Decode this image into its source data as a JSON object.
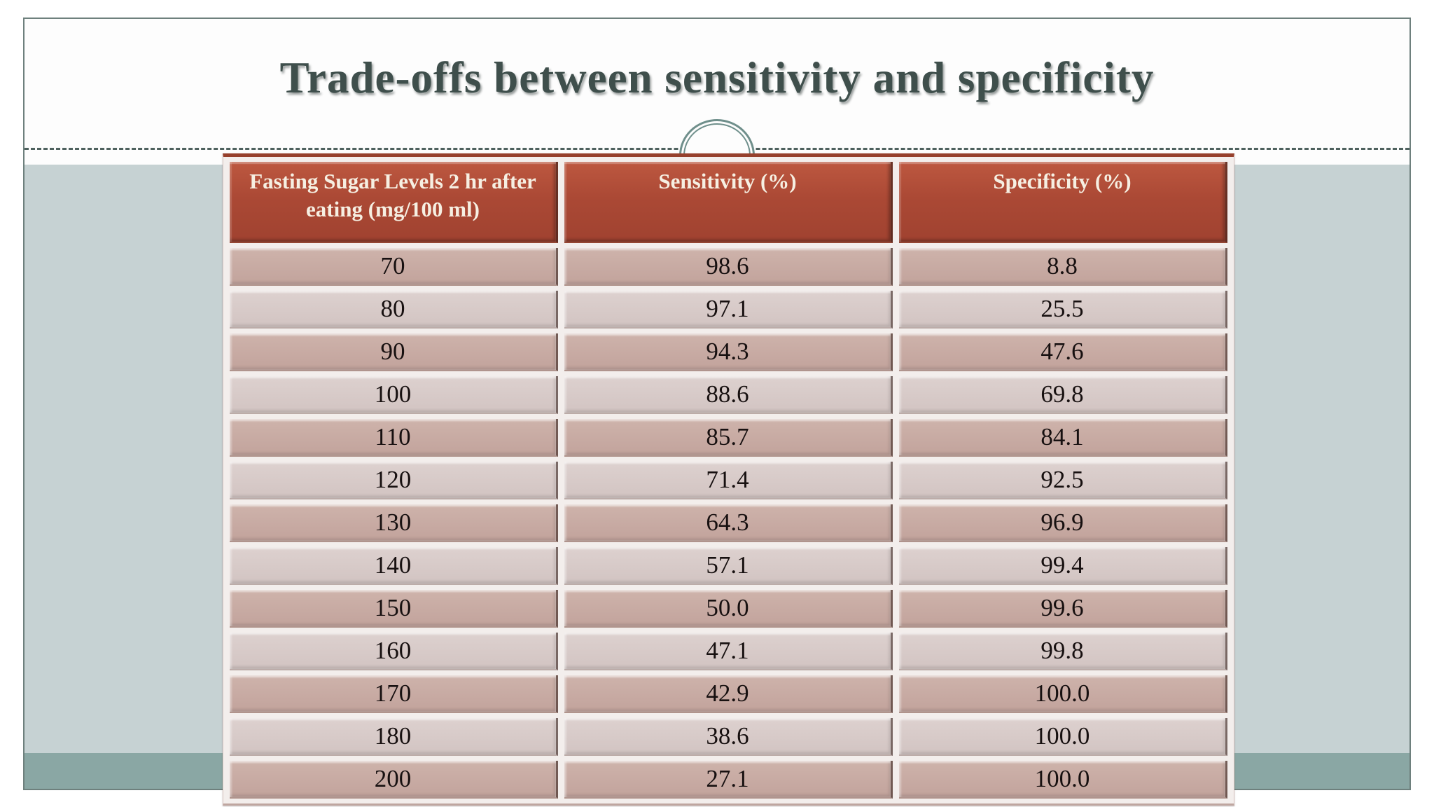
{
  "slide": {
    "title": "Trade-offs between sensitivity and specificity"
  },
  "table": {
    "headers": [
      "Fasting Sugar Levels 2 hr after eating (mg/100 ml)",
      "Sensitivity (%)",
      "Specificity (%)"
    ],
    "rows": [
      {
        "level": "70",
        "sensitivity": "98.6",
        "specificity": "8.8"
      },
      {
        "level": "80",
        "sensitivity": "97.1",
        "specificity": "25.5"
      },
      {
        "level": "90",
        "sensitivity": "94.3",
        "specificity": "47.6"
      },
      {
        "level": "100",
        "sensitivity": "88.6",
        "specificity": "69.8"
      },
      {
        "level": "110",
        "sensitivity": "85.7",
        "specificity": "84.1"
      },
      {
        "level": "120",
        "sensitivity": "71.4",
        "specificity": "92.5"
      },
      {
        "level": "130",
        "sensitivity": "64.3",
        "specificity": "96.9"
      },
      {
        "level": "140",
        "sensitivity": "57.1",
        "specificity": "99.4"
      },
      {
        "level": "150",
        "sensitivity": "50.0",
        "specificity": "99.6"
      },
      {
        "level": "160",
        "sensitivity": "47.1",
        "specificity": "99.8"
      },
      {
        "level": "170",
        "sensitivity": "42.9",
        "specificity": "100.0"
      },
      {
        "level": "180",
        "sensitivity": "38.6",
        "specificity": "100.0"
      },
      {
        "level": "200",
        "sensitivity": "27.1",
        "specificity": "100.0"
      }
    ],
    "row_cell_keys": [
      "level",
      "sensitivity",
      "specificity"
    ]
  },
  "colors": {
    "header_bg": "#ab4935",
    "header_text": "#f6efe2",
    "row_dark": "#c6a8a1",
    "row_light": "#d7cac8",
    "band_main": "#c6d2d3",
    "band_bottom": "#8aa7a4",
    "title_text": "#3f4f4c",
    "ornament_ring": "#6f8f8b",
    "slide_border": "#6e807d"
  }
}
